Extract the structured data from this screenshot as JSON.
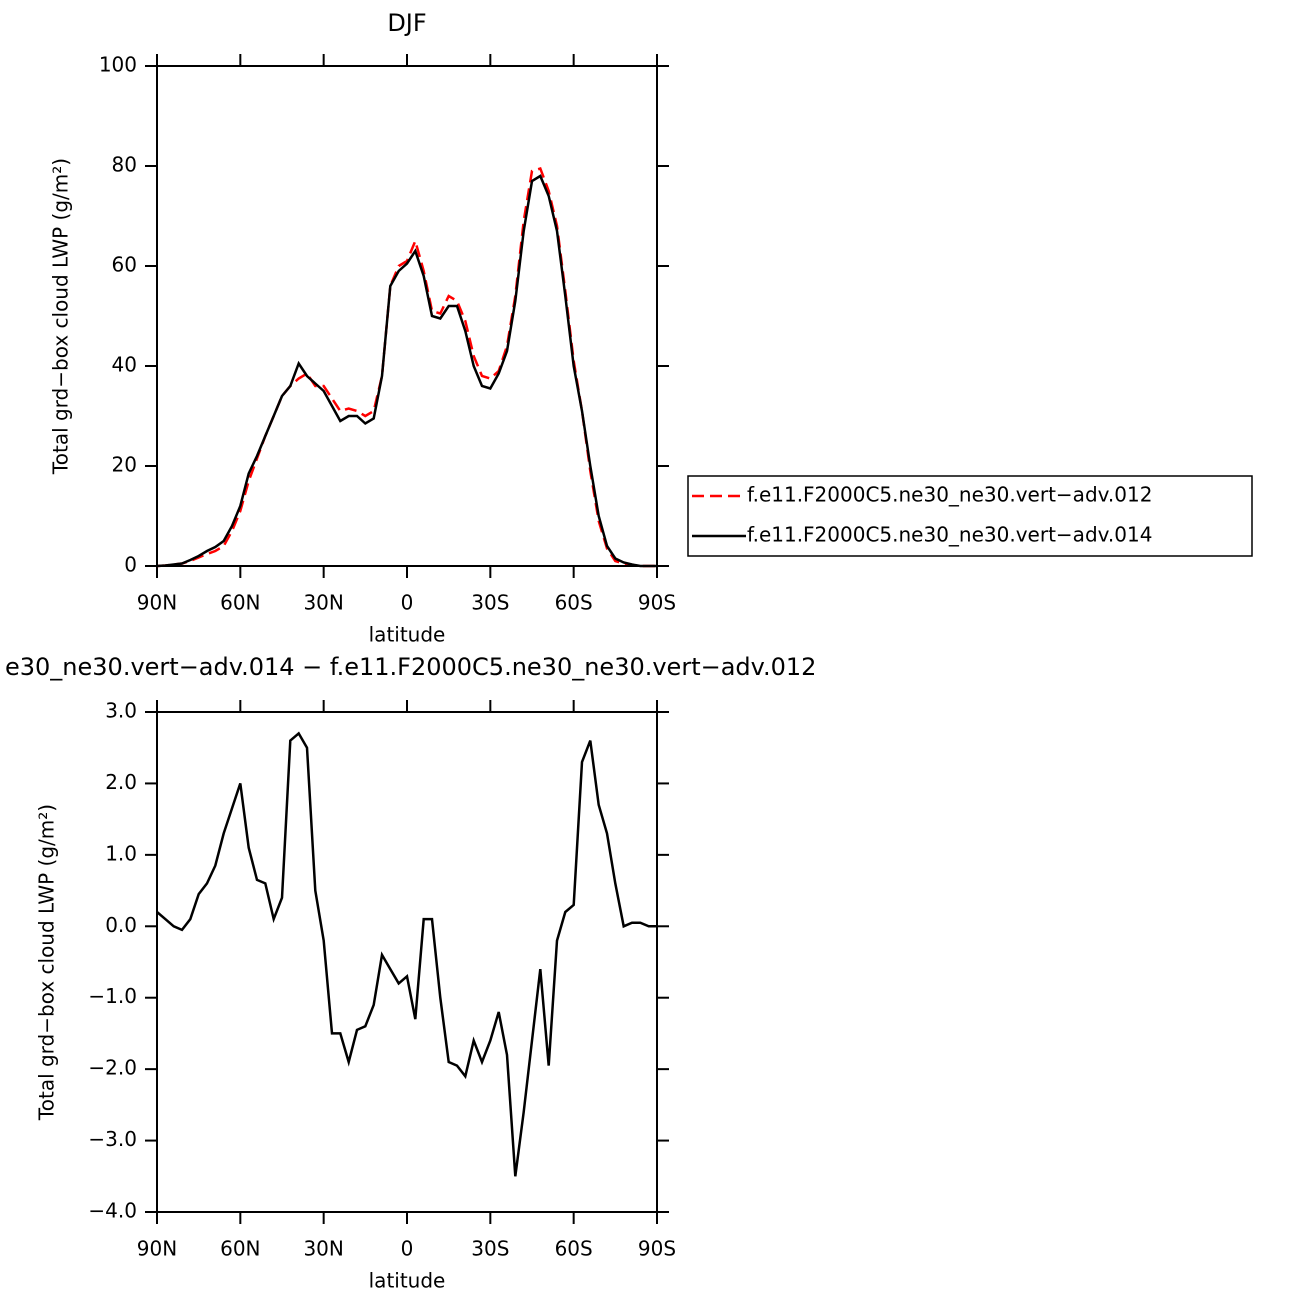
{
  "chart_data": [
    {
      "type": "line",
      "title": "DJF",
      "xlabel": "latitude",
      "ylabel": "Total grd−box cloud LWP (g/m²)",
      "x": [
        90,
        87,
        84,
        81,
        78,
        75,
        72,
        69,
        66,
        63,
        60,
        57,
        54,
        51,
        48,
        45,
        42,
        39,
        36,
        33,
        30,
        27,
        24,
        21,
        18,
        15,
        12,
        9,
        6,
        3,
        0,
        -3,
        -6,
        -9,
        -12,
        -15,
        -18,
        -21,
        -24,
        -27,
        -30,
        -33,
        -36,
        -39,
        -42,
        -45,
        -48,
        -51,
        -54,
        -57,
        -60,
        -63,
        -66,
        -69,
        -72,
        -75,
        -78,
        -81,
        -84,
        -87,
        -90
      ],
      "series": [
        {
          "name": "f.e11.F2000C5.ne30_ne30.vert−adv.012",
          "color": "#ff0000",
          "dash": "dashed",
          "values": [
            0,
            0.1,
            0.3,
            0.5,
            1,
            1.7,
            2.4,
            3,
            4,
            7,
            11,
            17,
            21.5,
            26,
            30,
            34,
            36,
            37.5,
            38.5,
            36,
            36,
            33.5,
            31,
            31.5,
            31,
            30,
            31,
            38,
            56,
            60,
            61,
            65,
            59,
            51,
            50.5,
            54,
            53,
            49,
            42,
            38,
            37.5,
            39,
            44,
            54,
            69,
            79,
            79.5,
            75,
            68,
            55,
            41,
            31,
            19,
            9,
            3.5,
            1,
            0.5,
            0.2,
            0,
            0,
            0
          ]
        },
        {
          "name": "f.e11.F2000C5.ne30_ne30.vert−adv.014",
          "color": "#000000",
          "dash": "solid",
          "values": [
            0,
            0.1,
            0.3,
            0.5,
            1.2,
            2,
            3,
            3.8,
            5,
            8,
            12,
            18.5,
            22,
            26,
            30,
            34,
            36,
            40.5,
            38,
            36.5,
            35,
            32,
            29,
            30,
            30,
            28.5,
            29.5,
            38,
            56,
            59,
            60.5,
            63,
            58,
            50,
            49.5,
            52,
            52,
            47,
            40,
            36,
            35.5,
            38.5,
            43,
            53,
            67,
            77,
            78,
            74,
            67,
            54,
            40,
            31,
            20,
            10,
            4,
            1.5,
            0.7,
            0.3,
            0,
            0,
            0
          ]
        }
      ],
      "xlim": [
        90,
        -90
      ],
      "xticks": [
        {
          "value": 90,
          "label": "90N"
        },
        {
          "value": 60,
          "label": "60N"
        },
        {
          "value": 30,
          "label": "30N"
        },
        0,
        {
          "value": -30,
          "label": "30S"
        },
        {
          "value": -60,
          "label": "60S"
        },
        {
          "value": -90,
          "label": "90S"
        }
      ],
      "ylim": [
        0,
        100
      ],
      "yticks": [
        0,
        20,
        40,
        60,
        80,
        100
      ],
      "grid": false,
      "legend": "right"
    },
    {
      "type": "line",
      "title": "e30_ne30.vert−adv.014 − f.e11.F2000C5.ne30_ne30.vert−adv.012",
      "xlabel": "latitude",
      "ylabel": "Total grd−box cloud LWP (g/m²)",
      "x": [
        90,
        87,
        84,
        81,
        78,
        75,
        72,
        69,
        66,
        63,
        60,
        57,
        54,
        51,
        48,
        45,
        42,
        39,
        36,
        33,
        30,
        27,
        24,
        21,
        18,
        15,
        12,
        9,
        6,
        3,
        0,
        -3,
        -6,
        -9,
        -12,
        -15,
        -18,
        -21,
        -24,
        -27,
        -30,
        -33,
        -36,
        -39,
        -42,
        -45,
        -48,
        -51,
        -54,
        -57,
        -60,
        -63,
        -66,
        -69,
        -72,
        -75,
        -78,
        -81,
        -84,
        -87,
        -90
      ],
      "series": [
        {
          "color": "#000000",
          "dash": "solid",
          "values": [
            0.2,
            0.1,
            0,
            -0.05,
            0.1,
            0.45,
            0.6,
            0.85,
            1.3,
            1.65,
            2,
            1.1,
            0.65,
            0.6,
            0.1,
            0.4,
            2.6,
            2.7,
            2.5,
            0.5,
            -0.2,
            -1.5,
            -1.5,
            -1.9,
            -1.45,
            -1.4,
            -1.1,
            -0.4,
            -0.6,
            -0.8,
            -0.7,
            -1.3,
            0.1,
            0.1,
            -1,
            -1.9,
            -1.95,
            -2.1,
            -1.6,
            -1.9,
            -1.6,
            -1.2,
            -1.8,
            -3.5,
            -2.6,
            -1.6,
            -0.6,
            -1.95,
            -0.2,
            0.2,
            0.3,
            2.3,
            2.6,
            1.7,
            1.3,
            0.6,
            0,
            0.05,
            0.05,
            0,
            0
          ]
        }
      ],
      "xlim": [
        90,
        -90
      ],
      "xticks": [
        {
          "value": 90,
          "label": "90N"
        },
        {
          "value": 60,
          "label": "60N"
        },
        {
          "value": 30,
          "label": "30N"
        },
        0,
        {
          "value": -30,
          "label": "30S"
        },
        {
          "value": -60,
          "label": "60S"
        },
        {
          "value": -90,
          "label": "90S"
        }
      ],
      "ylim": [
        -4,
        3
      ],
      "yticks": [
        {
          "value": -4,
          "label": "−4.0"
        },
        {
          "value": -3,
          "label": "−3.0"
        },
        {
          "value": -2,
          "label": "−2.0"
        },
        {
          "value": -1,
          "label": "−1.0"
        },
        {
          "value": 0,
          "label": "0.0"
        },
        {
          "value": 1,
          "label": "1.0"
        },
        {
          "value": 2,
          "label": "2.0"
        },
        {
          "value": 3,
          "label": "3.0"
        }
      ],
      "grid": false
    }
  ]
}
